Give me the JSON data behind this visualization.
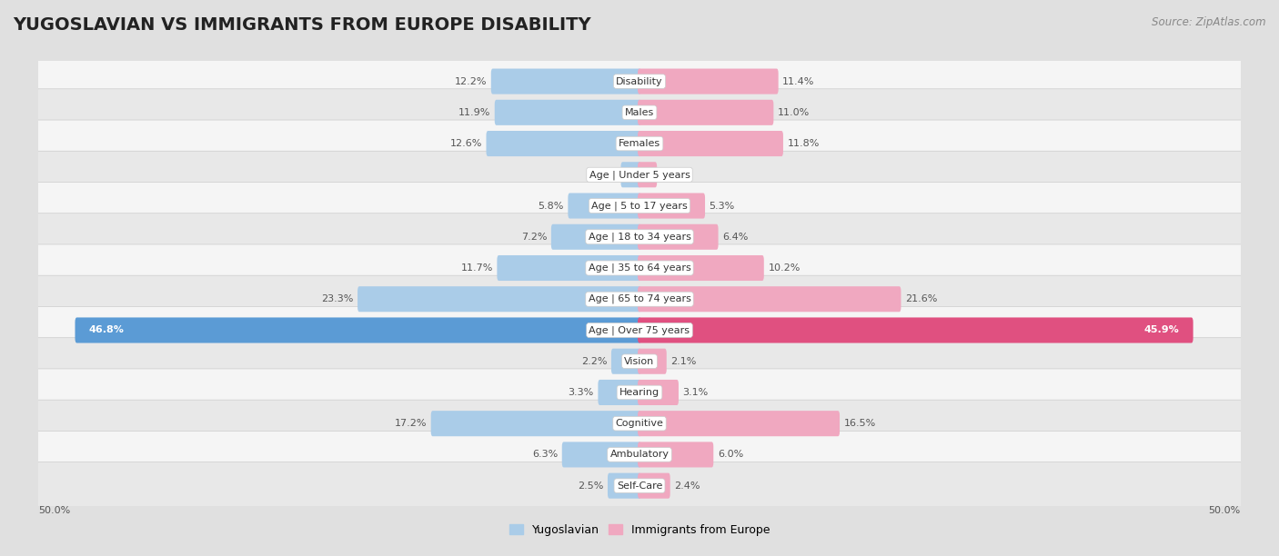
{
  "title": "YUGOSLAVIAN VS IMMIGRANTS FROM EUROPE DISABILITY",
  "source": "Source: ZipAtlas.com",
  "categories": [
    "Disability",
    "Males",
    "Females",
    "Age | Under 5 years",
    "Age | 5 to 17 years",
    "Age | 18 to 34 years",
    "Age | 35 to 64 years",
    "Age | 65 to 74 years",
    "Age | Over 75 years",
    "Vision",
    "Hearing",
    "Cognitive",
    "Ambulatory",
    "Self-Care"
  ],
  "yugoslavian": [
    12.2,
    11.9,
    12.6,
    1.4,
    5.8,
    7.2,
    11.7,
    23.3,
    46.8,
    2.2,
    3.3,
    17.2,
    6.3,
    2.5
  ],
  "immigrants": [
    11.4,
    11.0,
    11.8,
    1.3,
    5.3,
    6.4,
    10.2,
    21.6,
    45.9,
    2.1,
    3.1,
    16.5,
    6.0,
    2.4
  ],
  "max_val": 50.0,
  "blue_light": "#aacce8",
  "blue_dark": "#5b9bd5",
  "pink_light": "#f0a8c0",
  "pink_dark": "#e05080",
  "row_bg_light": "#e8e8e8",
  "row_bg_white": "#f5f5f5",
  "bg_color": "#e0e0e0",
  "title_fontsize": 14,
  "label_fontsize": 8,
  "value_fontsize": 8,
  "legend_fontsize": 9,
  "threshold_dark": 30
}
